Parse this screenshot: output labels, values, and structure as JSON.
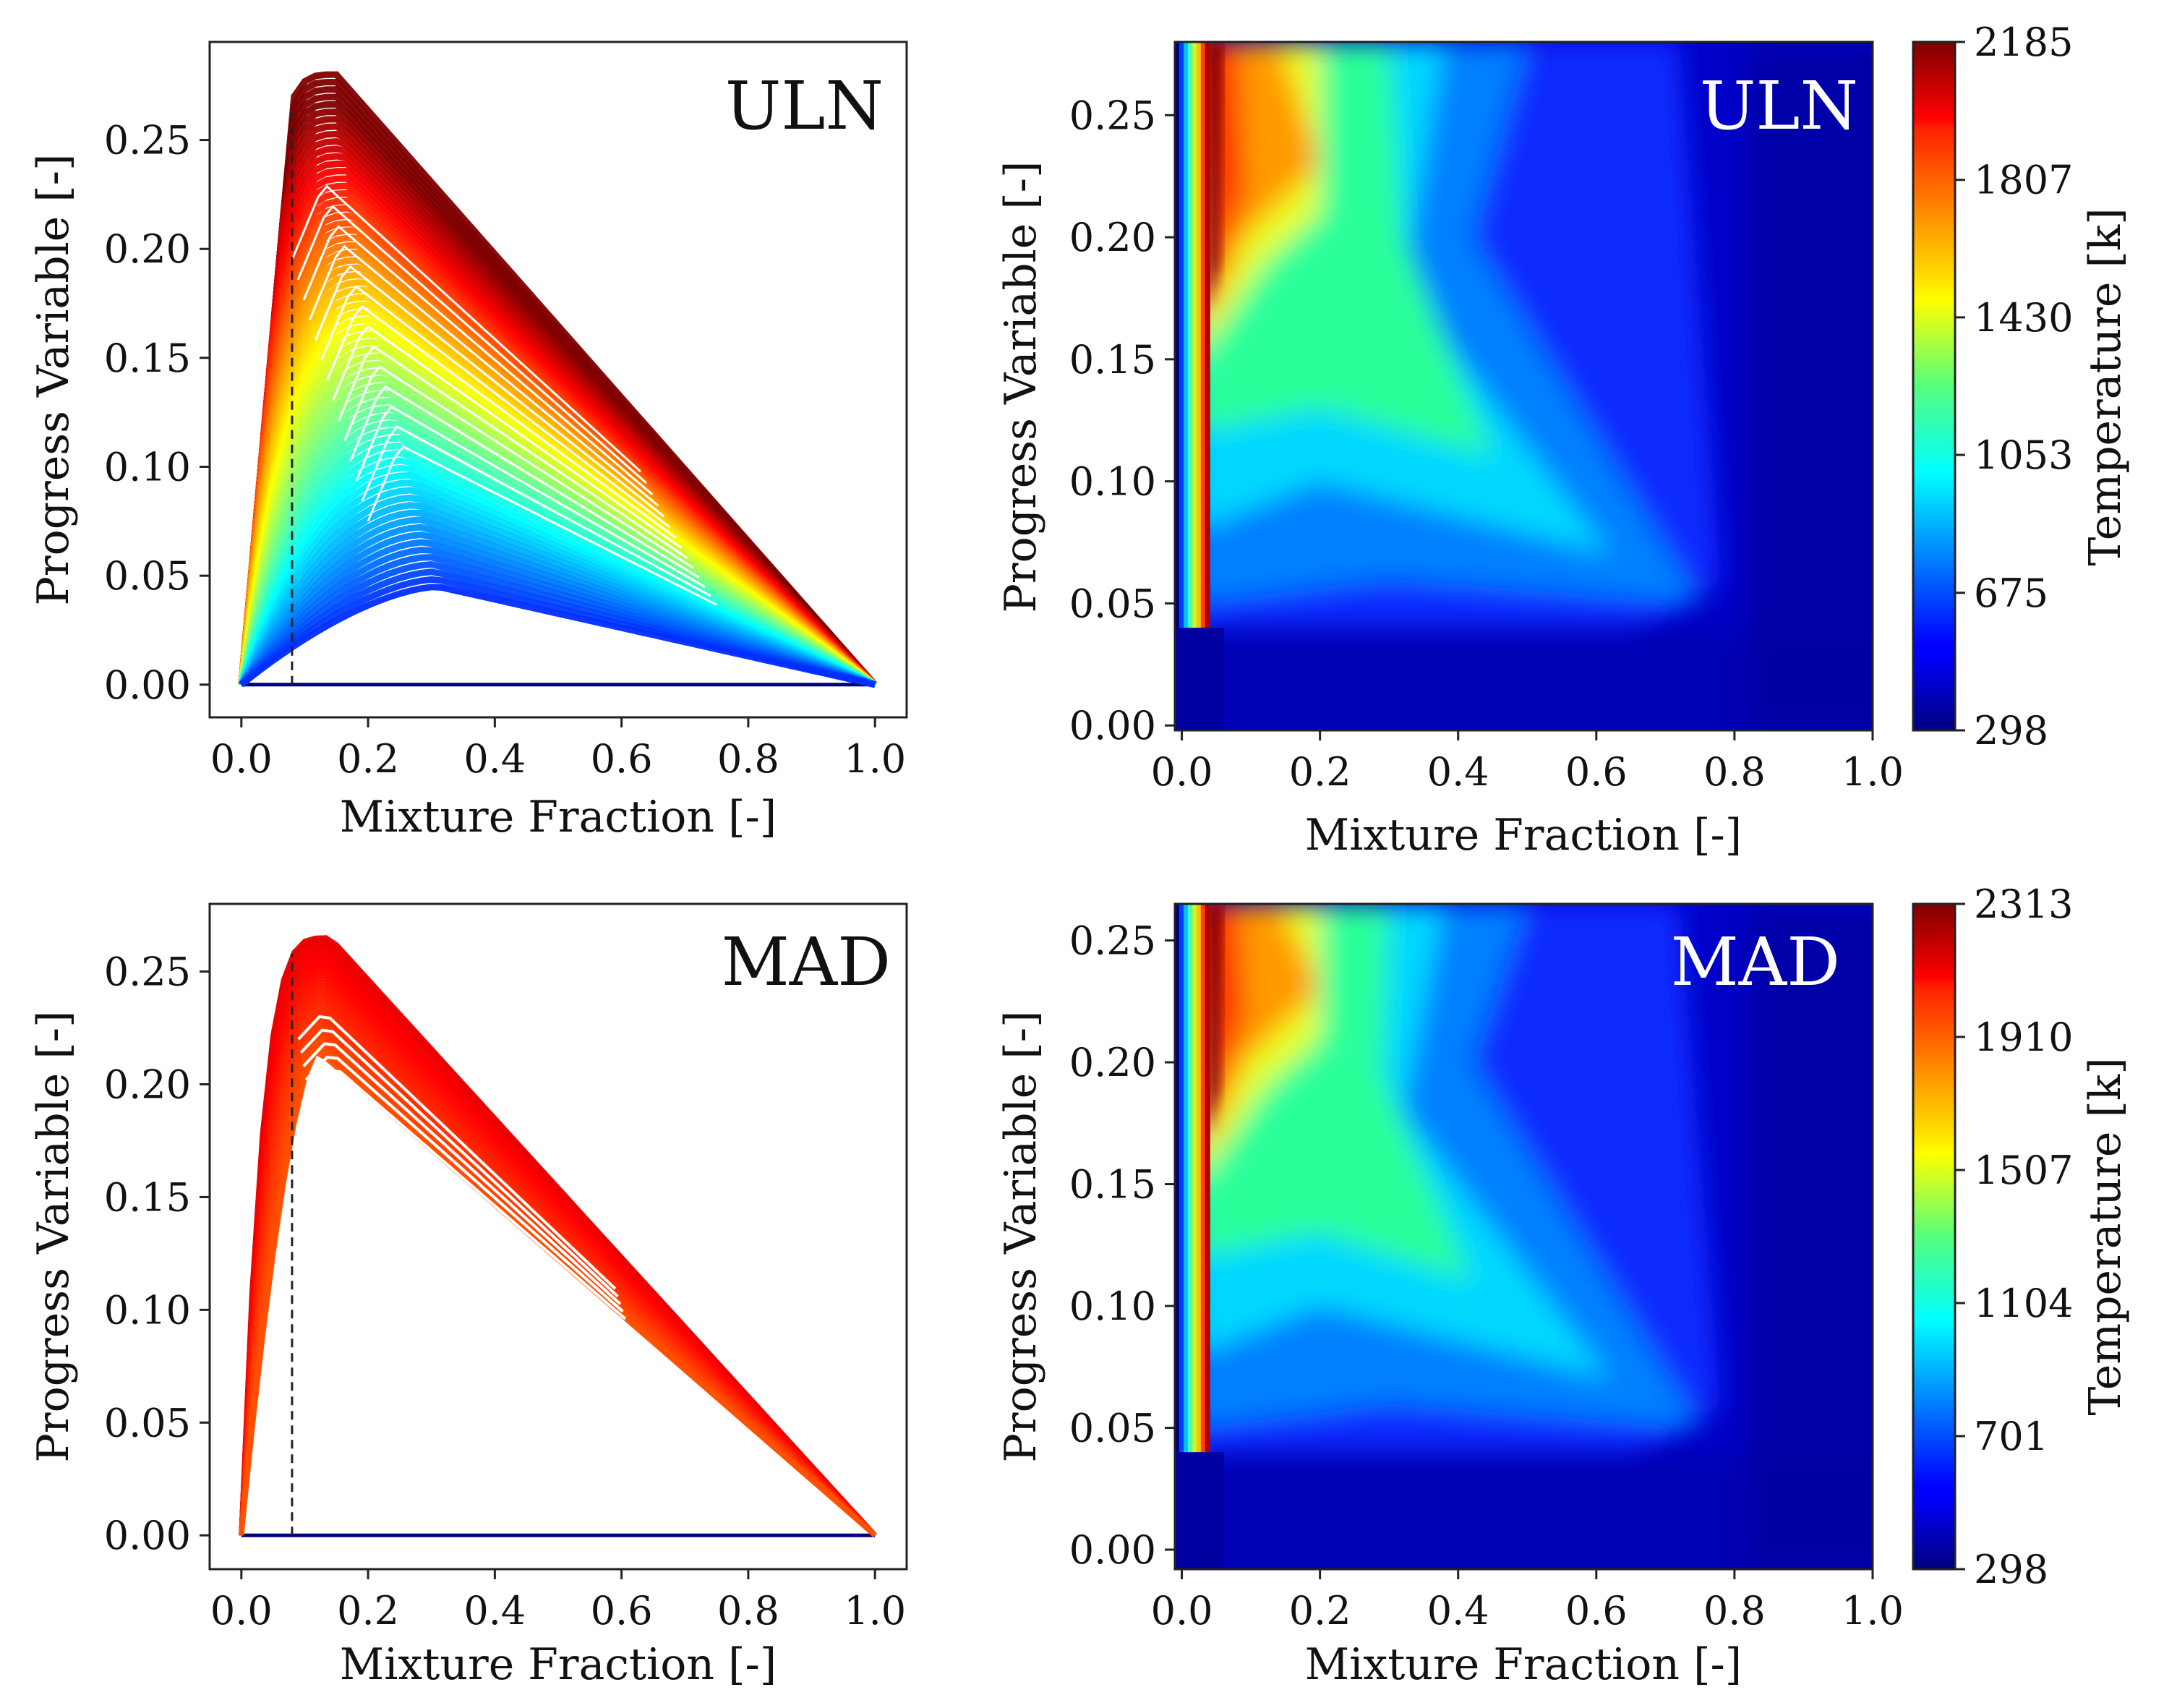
{
  "chart_data": [
    {
      "id": "uln-scatter",
      "type": "scatter",
      "panel_label": "ULN",
      "xlabel": "Mixture Fraction [-]",
      "ylabel": "Progress Variable [-]",
      "xlim": [
        -0.05,
        1.05
      ],
      "ylim": [
        -0.015,
        0.295
      ],
      "xticks": [
        "0.0",
        "0.2",
        "0.4",
        "0.6",
        "0.8",
        "1.0"
      ],
      "yticks": [
        "0.00",
        "0.05",
        "0.10",
        "0.15",
        "0.20",
        "0.25"
      ],
      "stoichiometric_line_x": 0.08,
      "envelope": {
        "upper_peak": [
          0.15,
          0.28
        ],
        "lower_peak": [
          0.31,
          0.045
        ],
        "stoich_top": 0.26,
        "end": [
          1.0,
          0.0
        ]
      },
      "colormap": "jet",
      "color_range_k": [
        298,
        2185
      ]
    },
    {
      "id": "uln-field",
      "type": "heatmap",
      "panel_label": "ULN",
      "xlabel": "Mixture Fraction [-]",
      "ylabel": "Progress Variable [-]",
      "xlim": [
        -0.01,
        1.0
      ],
      "ylim": [
        -0.002,
        0.28
      ],
      "xticks": [
        "0.0",
        "0.2",
        "0.4",
        "0.6",
        "0.8",
        "1.0"
      ],
      "yticks": [
        "0.00",
        "0.05",
        "0.10",
        "0.15",
        "0.20",
        "0.25"
      ],
      "colormap": "jet",
      "colorbar": {
        "label": "Temperature [k]",
        "min": 298,
        "max": 2185,
        "ticks": [
          "298",
          "675",
          "1053",
          "1430",
          "1807",
          "2185"
        ]
      }
    },
    {
      "id": "mad-scatter",
      "type": "scatter",
      "panel_label": "MAD",
      "xlabel": "Mixture Fraction [-]",
      "ylabel": "Progress Variable [-]",
      "xlim": [
        -0.05,
        1.05
      ],
      "ylim": [
        -0.015,
        0.28
      ],
      "xticks": [
        "0.0",
        "0.2",
        "0.4",
        "0.6",
        "0.8",
        "1.0"
      ],
      "yticks": [
        "0.00",
        "0.05",
        "0.10",
        "0.15",
        "0.20",
        "0.25"
      ],
      "stoichiometric_line_x": 0.08,
      "envelope": {
        "upper_peak": [
          0.14,
          0.265
        ],
        "lower_peak": [
          0.12,
          0.215
        ],
        "stoich_top": 0.255,
        "end": [
          1.0,
          0.0
        ]
      },
      "colormap": "jet",
      "color_range_k": [
        298,
        2313
      ]
    },
    {
      "id": "mad-field",
      "type": "heatmap",
      "panel_label": "MAD",
      "xlabel": "Mixture Fraction [-]",
      "ylabel": "Progress Variable [-]",
      "xlim": [
        -0.01,
        1.0
      ],
      "ylim": [
        -0.008,
        0.265
      ],
      "xticks": [
        "0.0",
        "0.2",
        "0.4",
        "0.6",
        "0.8",
        "1.0"
      ],
      "yticks": [
        "0.00",
        "0.05",
        "0.10",
        "0.15",
        "0.20",
        "0.25"
      ],
      "colormap": "jet",
      "colorbar": {
        "label": "Temperature [k]",
        "min": 298,
        "max": 2313,
        "ticks": [
          "298",
          "701",
          "1104",
          "1507",
          "1910",
          "2313"
        ]
      }
    }
  ]
}
